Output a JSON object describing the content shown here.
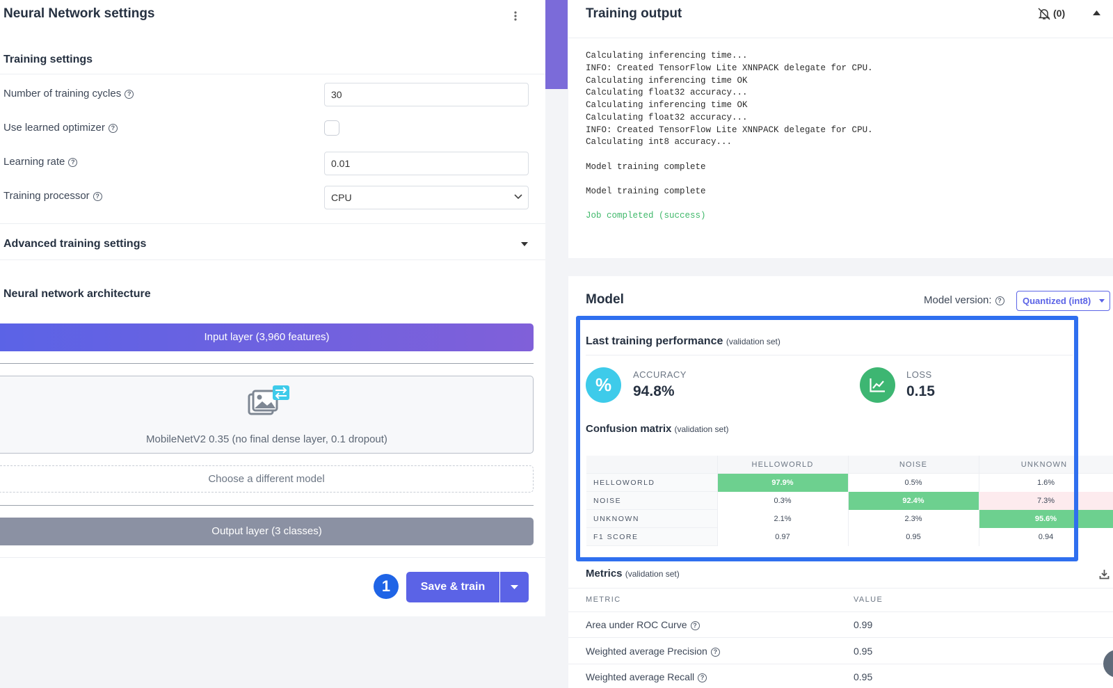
{
  "settings": {
    "title": "Neural Network settings",
    "training_section": "Training settings",
    "fields": [
      {
        "label": "Number of training cycles",
        "value": "30"
      },
      {
        "label": "Use learned optimizer",
        "value": ""
      },
      {
        "label": "Learning rate",
        "value": "0.01"
      },
      {
        "label": "Training processor",
        "value": "CPU"
      }
    ],
    "advanced": "Advanced training settings",
    "architecture_title": "Neural network architecture",
    "input_layer": "Input layer (3,960 features)",
    "model_name": "MobileNetV2 0.35 (no final dense layer, 0.1 dropout)",
    "choose_model": "Choose a different model",
    "output_layer": "Output layer (3 classes)",
    "step_number": "1",
    "save_train": "Save & train"
  },
  "training_output": {
    "title": "Training output",
    "notifications": "(0)",
    "log": [
      "Calculating inferencing time...",
      "INFO: Created TensorFlow Lite XNNPACK delegate for CPU.",
      "Calculating inferencing time OK",
      "Calculating float32 accuracy...",
      "Calculating inferencing time OK",
      "Calculating float32 accuracy...",
      "INFO: Created TensorFlow Lite XNNPACK delegate for CPU.",
      "Calculating int8 accuracy...",
      "Model training complete",
      "Model training complete",
      "Job completed (success)"
    ]
  },
  "model": {
    "title": "Model",
    "version_label": "Model version:",
    "version_value": "Quantized (int8)",
    "perf_title": "Last training performance",
    "validation_set": "(validation set)",
    "accuracy_label": "ACCURACY",
    "accuracy_value": "94.8%",
    "loss_label": "LOSS",
    "loss_value": "0.15",
    "cm_title": "Confusion matrix",
    "cm_headers": [
      "HELLOWORLD",
      "NOISE",
      "UNKNOWN"
    ],
    "cm_rows": [
      {
        "label": "HELLOWORLD",
        "cells": [
          "97.9%",
          "0.5%",
          "1.6%"
        ]
      },
      {
        "label": "NOISE",
        "cells": [
          "0.3%",
          "92.4%",
          "7.3%"
        ]
      },
      {
        "label": "UNKNOWN",
        "cells": [
          "2.1%",
          "2.3%",
          "95.6%"
        ]
      },
      {
        "label": "F1 SCORE",
        "cells": [
          "0.97",
          "0.95",
          "0.94"
        ]
      }
    ],
    "metrics_title": "Metrics",
    "metric_col": "METRIC",
    "value_col": "VALUE",
    "metrics": [
      {
        "name": "Area under ROC Curve",
        "value": "0.99"
      },
      {
        "name": "Weighted average Precision",
        "value": "0.95"
      },
      {
        "name": "Weighted average Recall",
        "value": "0.95"
      }
    ]
  },
  "colors": {
    "accent": "#5b63e6",
    "highlight": "#2f6fef",
    "success": "#6dd08f",
    "error_tint": "#fdebee",
    "accuracy_icon": "#3ecbea",
    "loss_icon": "#3db672"
  }
}
